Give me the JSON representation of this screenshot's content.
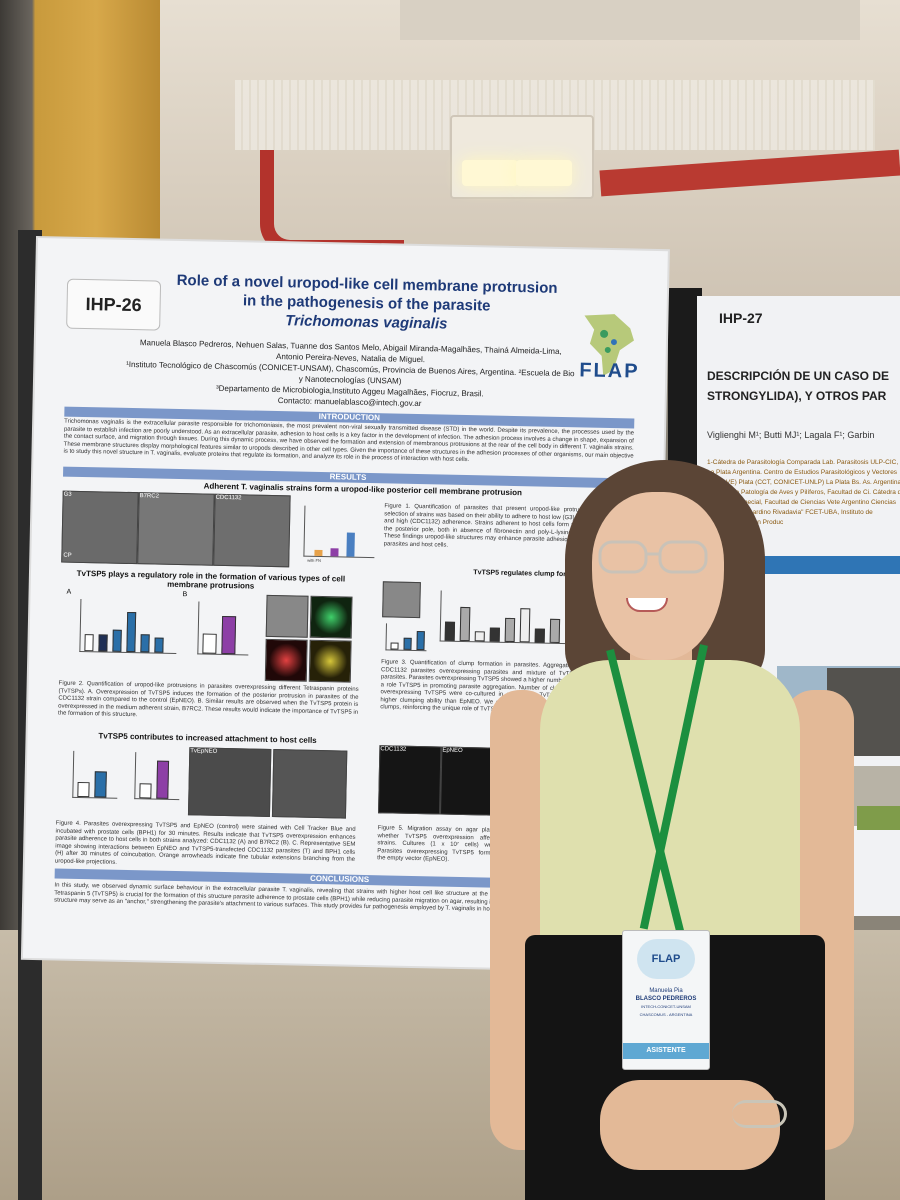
{
  "poster": {
    "code": "IHP-26",
    "title_line1": "Role of a novel uropod-like cell membrane protrusion",
    "title_line2": "in the pathogenesis of the parasite",
    "title_line3": "Trichomonas vaginalis",
    "logo_text": "FLAP",
    "authors": "Manuela Blasco Pedreros, Nehuen Salas, Tuanne dos Santos Melo, Abigail Miranda-Magalhães, Thainá Almeida-Lima, Antonio Pereira-Neves, Natalia de Miguel.",
    "affiliation1": "¹Instituto Tecnológico de Chascomús (CONICET-UNSAM), Chascomús, Provincia de Buenos Aires, Argentina. ²Escuela de Bio y Nanotecnologías (UNSAM)",
    "affiliation2": "³Departamento de Microbiologia,Instituto Aggeu Magalhães, Fiocruz, Brasil.",
    "contact": "Contacto: manuelablasco@intech.gov.ar",
    "intro_heading": "INTRODUCTION",
    "intro_text": "Trichomonas vaginalis is the extracellular parasite responsible for trichomoniasis, the most prevalent non-viral sexually transmitted disease (STD) in the world. Despite its prevalence, the processes used by the parasite to establish infection are poorly understood. As an extracellular parasite, adhesion to host cells is a key factor in the development of infection. The adhesion process involves a change in shape, expansion of the contact surface, and migration through tissues. During this dynamic process, we have observed the formation and extension of membranous protrusions at the rear of the cell body in different T. vaginalis strains. These membrane structures display morphological features similar to uropods described in other cell types. Given the importance of these structures in the adhesion processes of other organisms, our main objective is to study this novel structure in T. vaginalis, evaluate proteins that regulate its formation, and analyze its role in the process of interaction with host cells.",
    "results_heading": "RESULTS",
    "results_sub": "Adherent T. vaginalis strains form a uropod-like posterior cell membrane protrusion",
    "img_labels": [
      "G3",
      "B7RC2",
      "CDC1132"
    ],
    "fig1_caption": "Figure 1. Quantification of parasites that present uropod-like protrusions pole. The selection of strains was based on their ability to adhere to host low (G3), medium (B7RC2) and high (CDC1132) adherence. Strains adherent to host cells form more protrusions at the posterior pole, both in absence of fibronectin and poly-L-lysine (data not shown). These findings uropod-like structures may enhance parasite adhesion to diverse surfaces parasites and host cells.",
    "tvtsp5_heading": "TvTSP5 plays a regulatory role in the formation of various types of cell membrane protrusions",
    "fig2_caption": "Figure 2. Quantification of uropod-like protrusions in parasites overexpressing different Tetraspanin proteins (TvTSPs). A. Overexpression of TvTSP5 induces the formation of the posterior protrusion in parasites of the CDC1132 strain compared to the control (EpNEO). B. Similar results are observed when the TvTSP5 protein is overexpressed in the medium adherent strain, B7RC2. These results would indicate the importance of TvTSP5 in the formation of this structure.",
    "attach_heading": "TvTSP5 contributes to increased attachment to host cells",
    "fig4_caption": "Figure 4. Parasites overexpressing TvTSP5 and EpNEO (control) were stained with Cell Tracker Blue and incubated with prostate cells (BPH1) for 30 minutes. Results indicate that TvTSP5 overexpression enhances parasite adherence to host cells in both strains analyzed: CDC1132 (A) and B7RC2 (B). C. Representative SEM image showing interactions between EpNEO and TvTSP5-transfected CDC1132 parasites (T) and BPH1 cells (H) after 30 minutes of coincubation. Orange arrowheads indicate fine tubular extensions branching from the uropod-like projections.",
    "clump_heading": "TvTSP5 regulates clump formation",
    "fig3_caption": "Figure 3. Quantification of clump formation in parasites. Aggregation was assessed in CDC1132 parasites overexpressing parasites and mixture of TvTSP5 and/or EpNEO parasites. Parasites overexpressing TvTSP5 showed a higher number of clumps, supporting a role TvTSP5 in promoting parasite aggregation. Number of clumps, CDC1132 parasites overexpressing TvTSP5 were co-cultured in a 1:1 ratio TvTSP5 parasites, indicating a higher clumping ability than EpNEO. We confirmed that co-cultures of EpNEO parasites clumps, reinforcing the unique role of TvTSP5.",
    "migration_heading": "TvTSP5 decreases",
    "fig5_caption": "Figure 5. Migration assay on agar plates whether TvTSP5 overexpression affects strains. Cultures (1 x 10⁷ cells) were Parasites overexpressing TvTSP5 formed the empty vector (EpNEO).",
    "conclusions_heading": "CONCLUSIONS",
    "conclusions_text": "In this study, we observed dynamic surface behaviour in the extracellular parasite T. vaginalis, revealing that strains with higher host cell like structure at the posterior pole. We demonstrated that the protein Tetraspanin 5 (TvTSP5) is crucial for the formation of this structure parasite adherence to prostate cells (BPH1) while reducing parasite migration on agar, resulting in smaller migration halos compared to uropod-like structure may serve as an \"anchor,\" strengthening the parasite's attachment to various surfaces. This study provides fur pathogenesis employed by T. vaginalis in host cells.",
    "fig2_bar_labels": [
      "EpNEO",
      "TvTSP1",
      "TvTSP2",
      "TvTSP5",
      "TvTSP6",
      "TvTSP8"
    ],
    "fig2_bar_values": [
      1,
      1,
      1.3,
      2.4,
      1.1,
      0.9
    ],
    "fig2b_labels": [
      "EpNEO",
      "TvTSP5"
    ],
    "fig2b_values": [
      1,
      1.9
    ],
    "fig4a_labels": [
      "EpNEO",
      "TvTSP5"
    ],
    "fig4a_values": [
      1,
      1.8
    ],
    "fig4b_labels": [
      "EpNEO",
      "TvTSP5"
    ],
    "fig4b_values": [
      1,
      2.6
    ],
    "fig4c_label": "TvEpNEO",
    "fig5_img_labels": [
      "CDC1132",
      "EpNEO"
    ],
    "fig1_bar_labels": [
      "G3",
      "B7RC2",
      "CDC1132"
    ],
    "fig1_axis_label": "% parasites with posterior protrusion",
    "fig1_x_label": "with FN",
    "panel_labels": [
      "A",
      "B",
      "C"
    ],
    "cp_label": "CP"
  },
  "poster2": {
    "code": "IHP-27",
    "title": "DESCRIPCIÓN DE UN CASO DE STRONGYLIDA), Y OTROS PAR",
    "authors": "Viglienghi M¹; Butti MJ¹; Lagala F¹; Garbin",
    "affiliations": "1-Cátedra de Parasitología Comparada Lab. Parasitosis ULP-CIC, La Plata Argentina. Centro de Estudios Parasitológicos y Vectores (CEPAVE) Plata (CCT, CONICET-UNLP) La Plata Bs. As. Argentina. Cátedra de Patología de Aves y Pilíferos, Facultad de Ci. Cátedra de Patología Especial, Facultad de Ciencias Vete Argentino Ciencias Naturales \"Bernardino Rivadavia\" FCET-UBA, Instituto de Investigaciones en Produc",
    "section_bar": "ucción"
  },
  "badge": {
    "logo": "FLAP",
    "first_name": "Manuela Pia",
    "last_name": "BLASCO PEDREROS",
    "institution": "INTECH-CONICET-UNSAM",
    "location": "CHASCOMUS - ARGENTINA",
    "role": "ASISTENTE"
  },
  "colors": {
    "poster_title": "#1e3a78",
    "section_bar": "#7b97c9",
    "bar_blue": "#2a6fa8",
    "bar_purple": "#8d3fa6",
    "lanyard": "#1c8f3f"
  }
}
